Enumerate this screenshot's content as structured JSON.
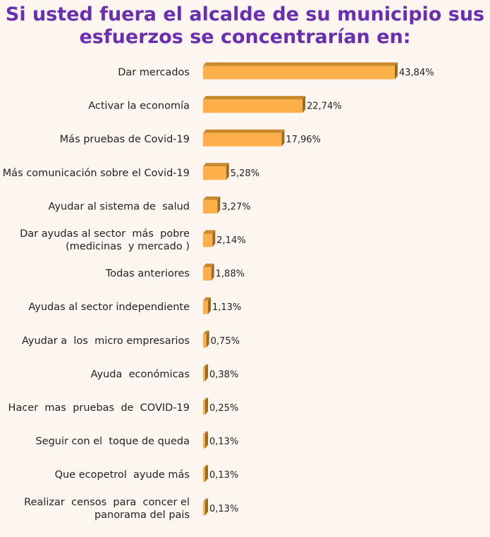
{
  "title_lines": [
    "Si usted fuera el alcalde de su municipio sus",
    "esfuerzos se concentrarían en:"
  ],
  "colors": {
    "title": "#6a2fb0",
    "bar_front": "#fdb04a",
    "bar_top": "#c98a2e",
    "bar_side": "#9a6a22",
    "background": "#fdf6f0"
  },
  "chart_data": {
    "type": "bar",
    "orientation": "horizontal",
    "style": "3d",
    "title": "Si usted fuera el alcalde de su municipio sus esfuerzos se concentrarían en:",
    "categories": [
      "Dar mercados",
      "Activar la economía",
      "Más pruebas de Covid-19",
      "Más comunicación sobre el Covid-19",
      "Ayudar al sistema de  salud",
      "Dar ayudas al sector  más  pobre\n(medicinas  y mercado )",
      "Todas anteriores",
      "Ayudas al sector independiente",
      "Ayudar a  los  micro empresarios",
      "Ayuda  económicas",
      "Hacer  mas  pruebas  de  COVID-19",
      "Seguir con el  toque de queda",
      "Que ecopetrol  ayude más",
      "Realizar  censos  para  concer el\npanorama del pais"
    ],
    "values": [
      43.84,
      22.74,
      17.96,
      5.28,
      3.27,
      2.14,
      1.88,
      1.13,
      0.75,
      0.38,
      0.25,
      0.13,
      0.13,
      0.13
    ],
    "value_labels": [
      "43,84%",
      "22,74%",
      "17,96%",
      "5,28%",
      "3,27%",
      "2,14%",
      "1,88%",
      "1,13%",
      "0,75%",
      "0,38%",
      "0,25%",
      "0,13%",
      "0,13%",
      "0,13%"
    ],
    "xlim": [
      0,
      45
    ],
    "grid": false,
    "legend": "none"
  }
}
